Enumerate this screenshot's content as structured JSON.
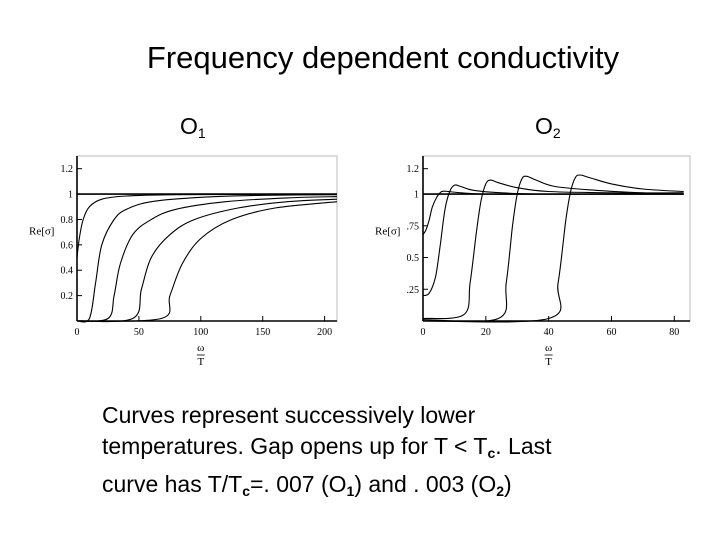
{
  "title": "Frequency dependent conductivity",
  "labels": {
    "o1": {
      "letter": "O",
      "sub": "1"
    },
    "o2": {
      "letter": "O",
      "sub": "2"
    }
  },
  "caption": {
    "line1": " Curves represent successively lower",
    "line2_pre": "temperatures. Gap opens up for T < T",
    "line2_sub": "c",
    "line2_post": ". Last",
    "line3_a": "curve has T/T",
    "line3_sub1": "c",
    "line3_b": "=. 007 (O",
    "line3_sub2": "1",
    "line3_c": ") and . 003 (O",
    "line3_sub3": "2",
    "line3_d": ")"
  },
  "chart_data": [
    {
      "type": "line",
      "ylabel": "Re[σ]",
      "xlabel_num": "ω",
      "xlabel_den": "T",
      "xlim": [
        0,
        210
      ],
      "ylim": [
        0,
        1.3
      ],
      "xticks": [
        0,
        50,
        100,
        150,
        200
      ],
      "yticks": [
        0.2,
        0.4,
        0.6,
        0.8,
        1,
        1.2
      ],
      "series": [
        {
          "x": [
            0,
            50,
            100,
            150,
            200,
            210
          ],
          "values": [
            1.0,
            1.0,
            1.0,
            1.0,
            1.0,
            1.0
          ]
        },
        {
          "x": [
            0,
            2,
            5,
            10,
            20,
            40,
            80,
            150,
            210
          ],
          "values": [
            0.5,
            0.66,
            0.8,
            0.9,
            0.96,
            0.985,
            0.995,
            0.998,
            0.999
          ]
        },
        {
          "x": [
            0,
            10,
            15,
            20,
            30,
            40,
            60,
            100,
            150,
            210
          ],
          "values": [
            0.0,
            0.02,
            0.3,
            0.6,
            0.8,
            0.88,
            0.94,
            0.975,
            0.99,
            0.995
          ]
        },
        {
          "x": [
            0,
            25,
            30,
            35,
            45,
            60,
            80,
            120,
            170,
            210
          ],
          "values": [
            0.0,
            0.02,
            0.2,
            0.45,
            0.68,
            0.8,
            0.88,
            0.94,
            0.97,
            0.98
          ]
        },
        {
          "x": [
            0,
            45,
            52,
            60,
            75,
            95,
            130,
            170,
            210
          ],
          "values": [
            0.0,
            0.02,
            0.25,
            0.5,
            0.68,
            0.8,
            0.89,
            0.94,
            0.96
          ]
        },
        {
          "x": [
            0,
            68,
            75,
            85,
            100,
            125,
            160,
            210
          ],
          "values": [
            0.0,
            0.02,
            0.2,
            0.45,
            0.65,
            0.8,
            0.89,
            0.94
          ]
        }
      ]
    },
    {
      "type": "line",
      "ylabel": "Re[σ]",
      "xlabel_num": "ω",
      "xlabel_den": "T",
      "xlim": [
        0,
        85
      ],
      "ylim": [
        0,
        1.3
      ],
      "xticks": [
        0,
        20,
        40,
        60,
        80
      ],
      "yticks": [
        0.25,
        0.5,
        0.75,
        1,
        1.2
      ],
      "ytick_labels": [
        ".25",
        "0.5",
        ".75",
        "1",
        "1.2"
      ],
      "series": [
        {
          "x": [
            0,
            20,
            40,
            60,
            80,
            83
          ],
          "values": [
            1.0,
            1.0,
            1.0,
            1.0,
            1.0,
            1.0
          ]
        },
        {
          "x": [
            0,
            1,
            2,
            3,
            4.5,
            6,
            8,
            12,
            20,
            40,
            83
          ],
          "values": [
            0.68,
            0.72,
            0.8,
            0.9,
            0.98,
            1.02,
            1.02,
            1.01,
            1.0,
            1.0,
            1.0
          ]
        },
        {
          "x": [
            0,
            2,
            4,
            5.5,
            7,
            8.5,
            10,
            12,
            16,
            25,
            40,
            83
          ],
          "values": [
            0.2,
            0.22,
            0.35,
            0.6,
            0.88,
            1.02,
            1.07,
            1.06,
            1.03,
            1.01,
            1.0,
            1.0
          ]
        },
        {
          "x": [
            0,
            13,
            15,
            17,
            18.5,
            20,
            21.5,
            24,
            30,
            40,
            60,
            83
          ],
          "values": [
            0.02,
            0.05,
            0.3,
            0.7,
            0.95,
            1.08,
            1.11,
            1.09,
            1.05,
            1.02,
            1.01,
            1.0
          ]
        },
        {
          "x": [
            0,
            24,
            26.5,
            28.5,
            30,
            31.5,
            33,
            36,
            42,
            55,
            70,
            83
          ],
          "values": [
            0.01,
            0.02,
            0.3,
            0.75,
            1.0,
            1.12,
            1.14,
            1.11,
            1.06,
            1.03,
            1.01,
            1.01
          ]
        },
        {
          "x": [
            0,
            40,
            43,
            45.5,
            47,
            48.5,
            50,
            53,
            60,
            70,
            83
          ],
          "values": [
            0.0,
            0.02,
            0.3,
            0.8,
            1.02,
            1.13,
            1.15,
            1.13,
            1.08,
            1.04,
            1.02
          ]
        }
      ]
    }
  ]
}
